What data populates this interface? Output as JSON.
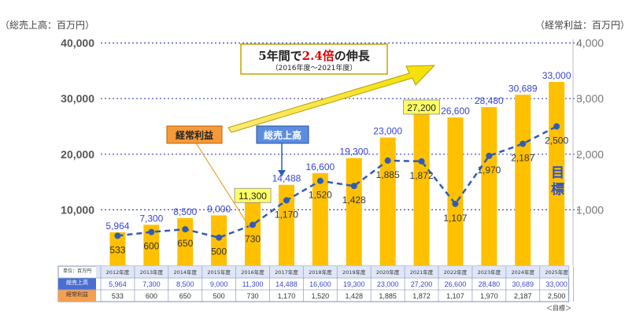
{
  "chart_data": {
    "type": "bar",
    "left_axis_title": "（総売上高：百万円）",
    "right_axis_title": "（経常利益：百万円）",
    "left_ticks": [
      "10,000",
      "20,000",
      "30,000",
      "40,000"
    ],
    "right_ticks": [
      "1,000",
      "2,000",
      "3,000",
      "4,000"
    ],
    "ylim_left": [
      0,
      40000
    ],
    "ylim_right": [
      0,
      4000
    ],
    "categories": [
      "2012年度",
      "2013年度",
      "2014年度",
      "2015年度",
      "2016年度",
      "2017年度",
      "2018年度",
      "2019年度",
      "2020年度",
      "2021年度",
      "2022年度",
      "2023年度",
      "2024年度",
      "2025年度"
    ],
    "series": [
      {
        "name": "総売上高",
        "axis": "left",
        "kind": "bar",
        "color": "#ffc000",
        "values": [
          5964,
          7300,
          8500,
          9000,
          11300,
          14488,
          16600,
          19300,
          23000,
          27200,
          26600,
          28480,
          30689,
          33000
        ],
        "labels": [
          "5,964",
          "7,300",
          "8,500",
          "9,000",
          "11,300",
          "14,488",
          "16,600",
          "19,300",
          "23,000",
          "27,200",
          "26,600",
          "28,480",
          "30,689",
          "33,000"
        ]
      },
      {
        "name": "経常利益",
        "axis": "right",
        "kind": "line",
        "color": "#2e5cb8",
        "values": [
          533,
          600,
          650,
          500,
          730,
          1170,
          1520,
          1428,
          1885,
          1872,
          1107,
          1970,
          2187,
          2500
        ],
        "labels": [
          "533",
          "600",
          "650",
          "500",
          "730",
          "1,170",
          "1,520",
          "1,428",
          "1,885",
          "1,872",
          "1,107",
          "1,970",
          "2,187",
          "2,500"
        ]
      }
    ],
    "highlighted_bar_labels": [
      4,
      9
    ],
    "grid": "dotted-horizontal",
    "callouts": {
      "profit": "経常利益",
      "sales": "総売上高",
      "growth_main": "5年間で2.4倍の伸長",
      "growth_main_prefix": "5年間で",
      "growth_main_number": "2.4倍",
      "growth_main_suffix": "の伸長",
      "growth_sub": "（2016年度～2021年度）",
      "target_1": "目",
      "target_2": "標"
    },
    "table": {
      "unit_label": "単位：百万円",
      "row_sales_label": "総売上高",
      "row_profit_label": "経常利益",
      "footnote": "＜目標＞"
    }
  }
}
